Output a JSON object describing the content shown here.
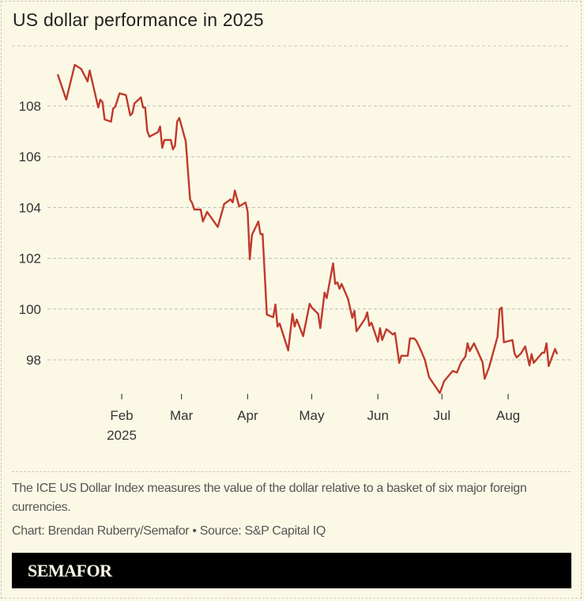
{
  "header": {
    "title": "US dollar performance in 2025"
  },
  "footer": {
    "note": "The ICE US Dollar Index measures the value of the dollar relative to a basket of six major foreign currencies.",
    "credit": "Chart: Brendan Ruberry/Semafor • Source: S&P Capital IQ",
    "brand": "SEMAFOR"
  },
  "colors": {
    "background": "#fbf9e6",
    "line": "#c0392b",
    "grid": "#bdbbae",
    "brand_band": "#000000"
  },
  "chart_data": {
    "type": "line",
    "title": "US dollar performance in 2025",
    "xlabel": "",
    "ylabel": "",
    "ylim": [
      96.5,
      110.3
    ],
    "xlim": [
      "2025-01-01",
      "2025-08-27"
    ],
    "grid": "horizontal dashed",
    "yticks": [
      {
        "value": 98,
        "label": "98"
      },
      {
        "value": 100,
        "label": "100"
      },
      {
        "value": 102,
        "label": "102"
      },
      {
        "value": 104,
        "label": "104"
      },
      {
        "value": 106,
        "label": "106"
      },
      {
        "value": 108,
        "label": "108"
      }
    ],
    "xticks": [
      {
        "date": "2025-02-01",
        "label": "Feb",
        "sublabel": "2025"
      },
      {
        "date": "2025-03-01",
        "label": "Mar"
      },
      {
        "date": "2025-04-01",
        "label": "Apr"
      },
      {
        "date": "2025-05-01",
        "label": "May"
      },
      {
        "date": "2025-06-01",
        "label": "Jun"
      },
      {
        "date": "2025-07-01",
        "label": "Jul"
      },
      {
        "date": "2025-08-01",
        "label": "Aug"
      }
    ],
    "series": [
      {
        "points": [
          [
            "2025-01-02",
            109.25
          ],
          [
            "2025-01-06",
            108.25
          ],
          [
            "2025-01-10",
            109.62
          ],
          [
            "2025-01-13",
            109.46
          ],
          [
            "2025-01-16",
            108.97
          ],
          [
            "2025-01-17",
            109.4
          ],
          [
            "2025-01-21",
            107.94
          ],
          [
            "2025-01-22",
            108.25
          ],
          [
            "2025-01-23",
            108.15
          ],
          [
            "2025-01-24",
            107.47
          ],
          [
            "2025-01-27",
            107.38
          ],
          [
            "2025-01-28",
            107.9
          ],
          [
            "2025-01-29",
            107.97
          ],
          [
            "2025-01-31",
            108.5
          ],
          [
            "2025-02-03",
            108.43
          ],
          [
            "2025-02-05",
            107.63
          ],
          [
            "2025-02-06",
            107.72
          ],
          [
            "2025-02-07",
            108.1
          ],
          [
            "2025-02-10",
            108.34
          ],
          [
            "2025-02-11",
            107.94
          ],
          [
            "2025-02-12",
            107.94
          ],
          [
            "2025-02-13",
            107.0
          ],
          [
            "2025-02-14",
            106.79
          ],
          [
            "2025-02-18",
            106.97
          ],
          [
            "2025-02-19",
            107.19
          ],
          [
            "2025-02-20",
            106.35
          ],
          [
            "2025-02-21",
            106.66
          ],
          [
            "2025-02-24",
            106.66
          ],
          [
            "2025-02-25",
            106.29
          ],
          [
            "2025-02-26",
            106.44
          ],
          [
            "2025-02-27",
            107.38
          ],
          [
            "2025-02-28",
            107.53
          ],
          [
            "2025-03-03",
            106.6
          ],
          [
            "2025-03-05",
            104.32
          ],
          [
            "2025-03-06",
            104.17
          ],
          [
            "2025-03-07",
            103.92
          ],
          [
            "2025-03-10",
            103.92
          ],
          [
            "2025-03-11",
            103.45
          ],
          [
            "2025-03-13",
            103.83
          ],
          [
            "2025-03-18",
            103.23
          ],
          [
            "2025-03-21",
            104.14
          ],
          [
            "2025-03-24",
            104.32
          ],
          [
            "2025-03-25",
            104.2
          ],
          [
            "2025-03-26",
            104.67
          ],
          [
            "2025-03-28",
            104.04
          ],
          [
            "2025-03-31",
            104.2
          ],
          [
            "2025-04-01",
            103.83
          ],
          [
            "2025-04-02",
            101.96
          ],
          [
            "2025-04-03",
            102.92
          ],
          [
            "2025-04-06",
            103.45
          ],
          [
            "2025-04-07",
            102.95
          ],
          [
            "2025-04-08",
            102.95
          ],
          [
            "2025-04-10",
            99.78
          ],
          [
            "2025-04-13",
            99.68
          ],
          [
            "2025-04-14",
            100.18
          ],
          [
            "2025-04-15",
            99.31
          ],
          [
            "2025-04-16",
            99.43
          ],
          [
            "2025-04-20",
            98.37
          ],
          [
            "2025-04-22",
            99.81
          ],
          [
            "2025-04-23",
            99.31
          ],
          [
            "2025-04-24",
            99.59
          ],
          [
            "2025-04-27",
            98.93
          ],
          [
            "2025-04-30",
            100.21
          ],
          [
            "2025-05-01",
            100.06
          ],
          [
            "2025-05-04",
            99.81
          ],
          [
            "2025-05-05",
            99.25
          ],
          [
            "2025-05-07",
            100.65
          ],
          [
            "2025-05-08",
            100.43
          ],
          [
            "2025-05-11",
            101.8
          ],
          [
            "2025-05-12",
            100.99
          ],
          [
            "2025-05-13",
            101.05
          ],
          [
            "2025-05-14",
            100.8
          ],
          [
            "2025-05-15",
            100.99
          ],
          [
            "2025-05-18",
            100.4
          ],
          [
            "2025-05-20",
            99.65
          ],
          [
            "2025-05-21",
            99.93
          ],
          [
            "2025-05-22",
            99.12
          ],
          [
            "2025-05-26",
            99.62
          ],
          [
            "2025-05-27",
            99.87
          ],
          [
            "2025-05-28",
            99.34
          ],
          [
            "2025-05-29",
            99.46
          ],
          [
            "2025-06-01",
            98.71
          ],
          [
            "2025-06-02",
            99.25
          ],
          [
            "2025-06-03",
            98.78
          ],
          [
            "2025-06-05",
            99.21
          ],
          [
            "2025-06-08",
            99.0
          ],
          [
            "2025-06-09",
            99.06
          ],
          [
            "2025-06-11",
            97.88
          ],
          [
            "2025-06-12",
            98.16
          ],
          [
            "2025-06-15",
            98.16
          ],
          [
            "2025-06-16",
            98.84
          ],
          [
            "2025-06-18",
            98.84
          ],
          [
            "2025-06-19",
            98.75
          ],
          [
            "2025-06-21",
            98.4
          ],
          [
            "2025-06-23",
            98.0
          ],
          [
            "2025-06-25",
            97.31
          ],
          [
            "2025-06-26",
            97.19
          ],
          [
            "2025-06-30",
            96.69
          ],
          [
            "2025-07-02",
            97.16
          ],
          [
            "2025-07-06",
            97.56
          ],
          [
            "2025-07-08",
            97.5
          ],
          [
            "2025-07-10",
            97.91
          ],
          [
            "2025-07-12",
            98.13
          ],
          [
            "2025-07-13",
            98.65
          ],
          [
            "2025-07-14",
            98.34
          ],
          [
            "2025-07-16",
            98.65
          ],
          [
            "2025-07-20",
            97.91
          ],
          [
            "2025-07-21",
            97.25
          ],
          [
            "2025-07-23",
            97.69
          ],
          [
            "2025-07-27",
            98.9
          ],
          [
            "2025-07-28",
            99.99
          ],
          [
            "2025-07-29",
            100.06
          ],
          [
            "2025-07-30",
            98.69
          ],
          [
            "2025-08-03",
            98.78
          ],
          [
            "2025-08-04",
            98.25
          ],
          [
            "2025-08-05",
            98.09
          ],
          [
            "2025-08-07",
            98.25
          ],
          [
            "2025-08-09",
            98.53
          ],
          [
            "2025-08-11",
            97.78
          ],
          [
            "2025-08-12",
            98.22
          ],
          [
            "2025-08-13",
            97.88
          ],
          [
            "2025-08-17",
            98.28
          ],
          [
            "2025-08-18",
            98.28
          ],
          [
            "2025-08-19",
            98.65
          ],
          [
            "2025-08-20",
            97.75
          ],
          [
            "2025-08-23",
            98.43
          ],
          [
            "2025-08-24",
            98.22
          ]
        ]
      }
    ]
  }
}
